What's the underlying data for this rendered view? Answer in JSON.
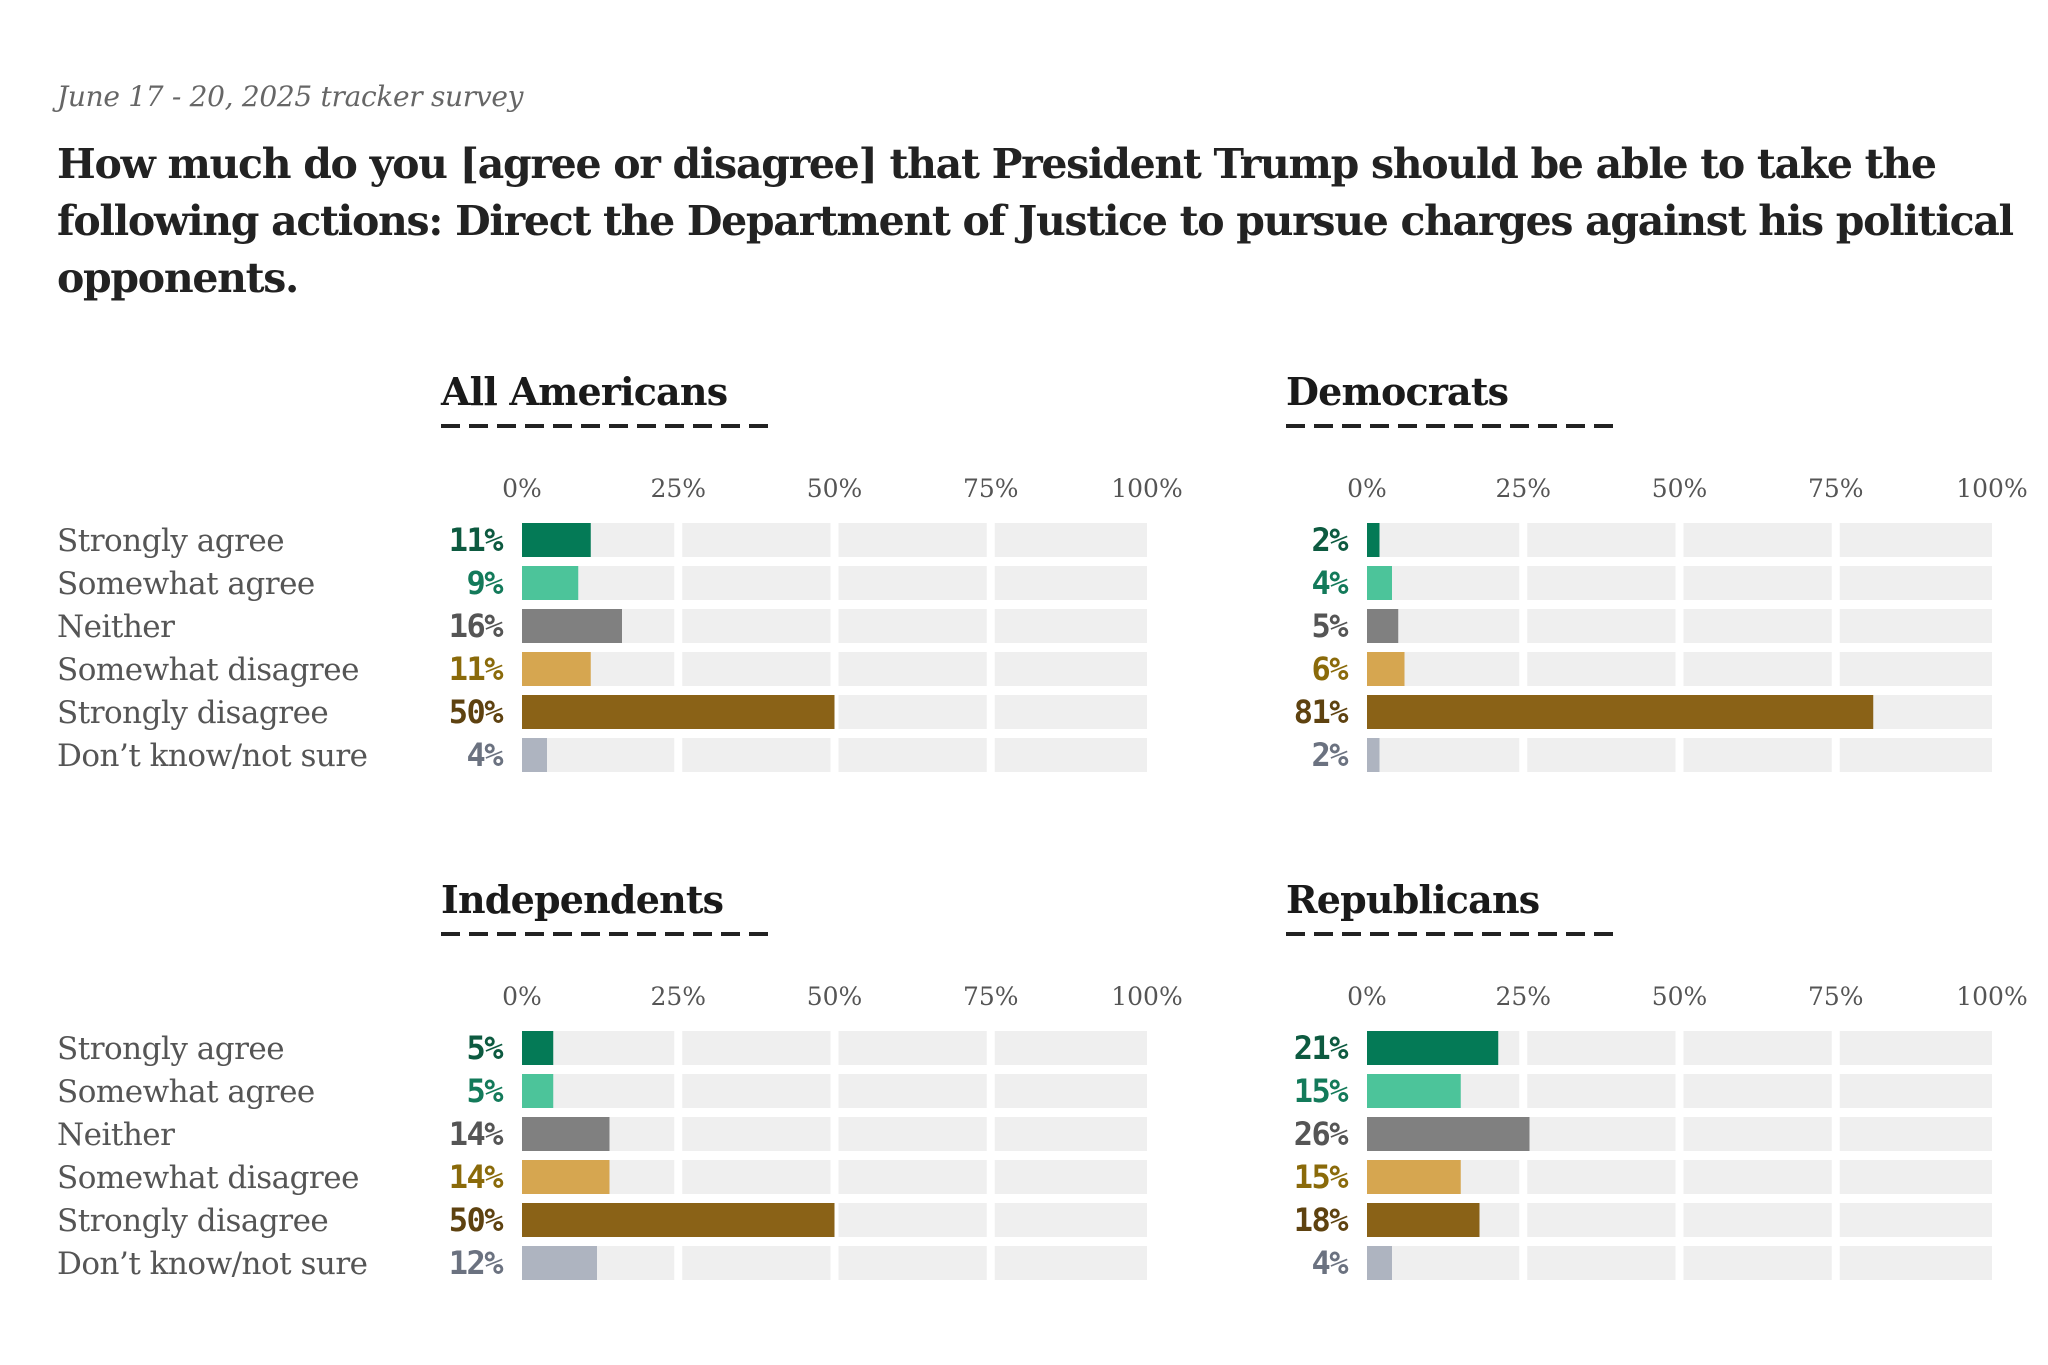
{
  "header": {
    "subtitle": "June 17 - 20, 2025 tracker survey",
    "title": "How much do you [agree or disagree] that President Trump should be able to take the following actions: Direct the Department of Justice to pursue charges against his political opponents."
  },
  "chart_data": {
    "type": "bar",
    "orientation": "horizontal",
    "title": "How much do you [agree or disagree] that President Trump should be able to take the following actions: Direct the Department of Justice to pursue charges against his political opponents.",
    "subtitle": "June 17 - 20, 2025 tracker survey",
    "xlim": [
      0,
      100
    ],
    "x_ticks": [
      "0%",
      "25%",
      "50%",
      "75%",
      "100%"
    ],
    "x_tick_values": [
      0,
      25,
      50,
      75,
      100
    ],
    "grid": true,
    "categories": [
      "Strongly agree",
      "Somewhat agree",
      "Neither",
      "Somewhat disagree",
      "Strongly disagree",
      "Don’t know/not sure"
    ],
    "colors": {
      "bar": [
        "#047a56",
        "#4cc49a",
        "#808080",
        "#d6a650",
        "#8a6217",
        "#aeb4c0"
      ],
      "label": [
        "#0d5a40",
        "#137a5a",
        "#555555",
        "#8a6a0a",
        "#5e4210",
        "#6b7280"
      ],
      "track": "#efefef",
      "track_gap": "#ffffff"
    },
    "panels": [
      {
        "name": "All Americans",
        "values": [
          11,
          9,
          16,
          11,
          50,
          4
        ],
        "show_row_labels": true,
        "position": "top-left"
      },
      {
        "name": "Democrats",
        "values": [
          2,
          4,
          5,
          6,
          81,
          2
        ],
        "show_row_labels": false,
        "position": "top-right"
      },
      {
        "name": "Independents",
        "values": [
          5,
          5,
          14,
          14,
          50,
          12
        ],
        "show_row_labels": true,
        "position": "bottom-left"
      },
      {
        "name": "Republicans",
        "values": [
          21,
          15,
          26,
          15,
          18,
          4
        ],
        "show_row_labels": false,
        "position": "bottom-right"
      }
    ]
  }
}
